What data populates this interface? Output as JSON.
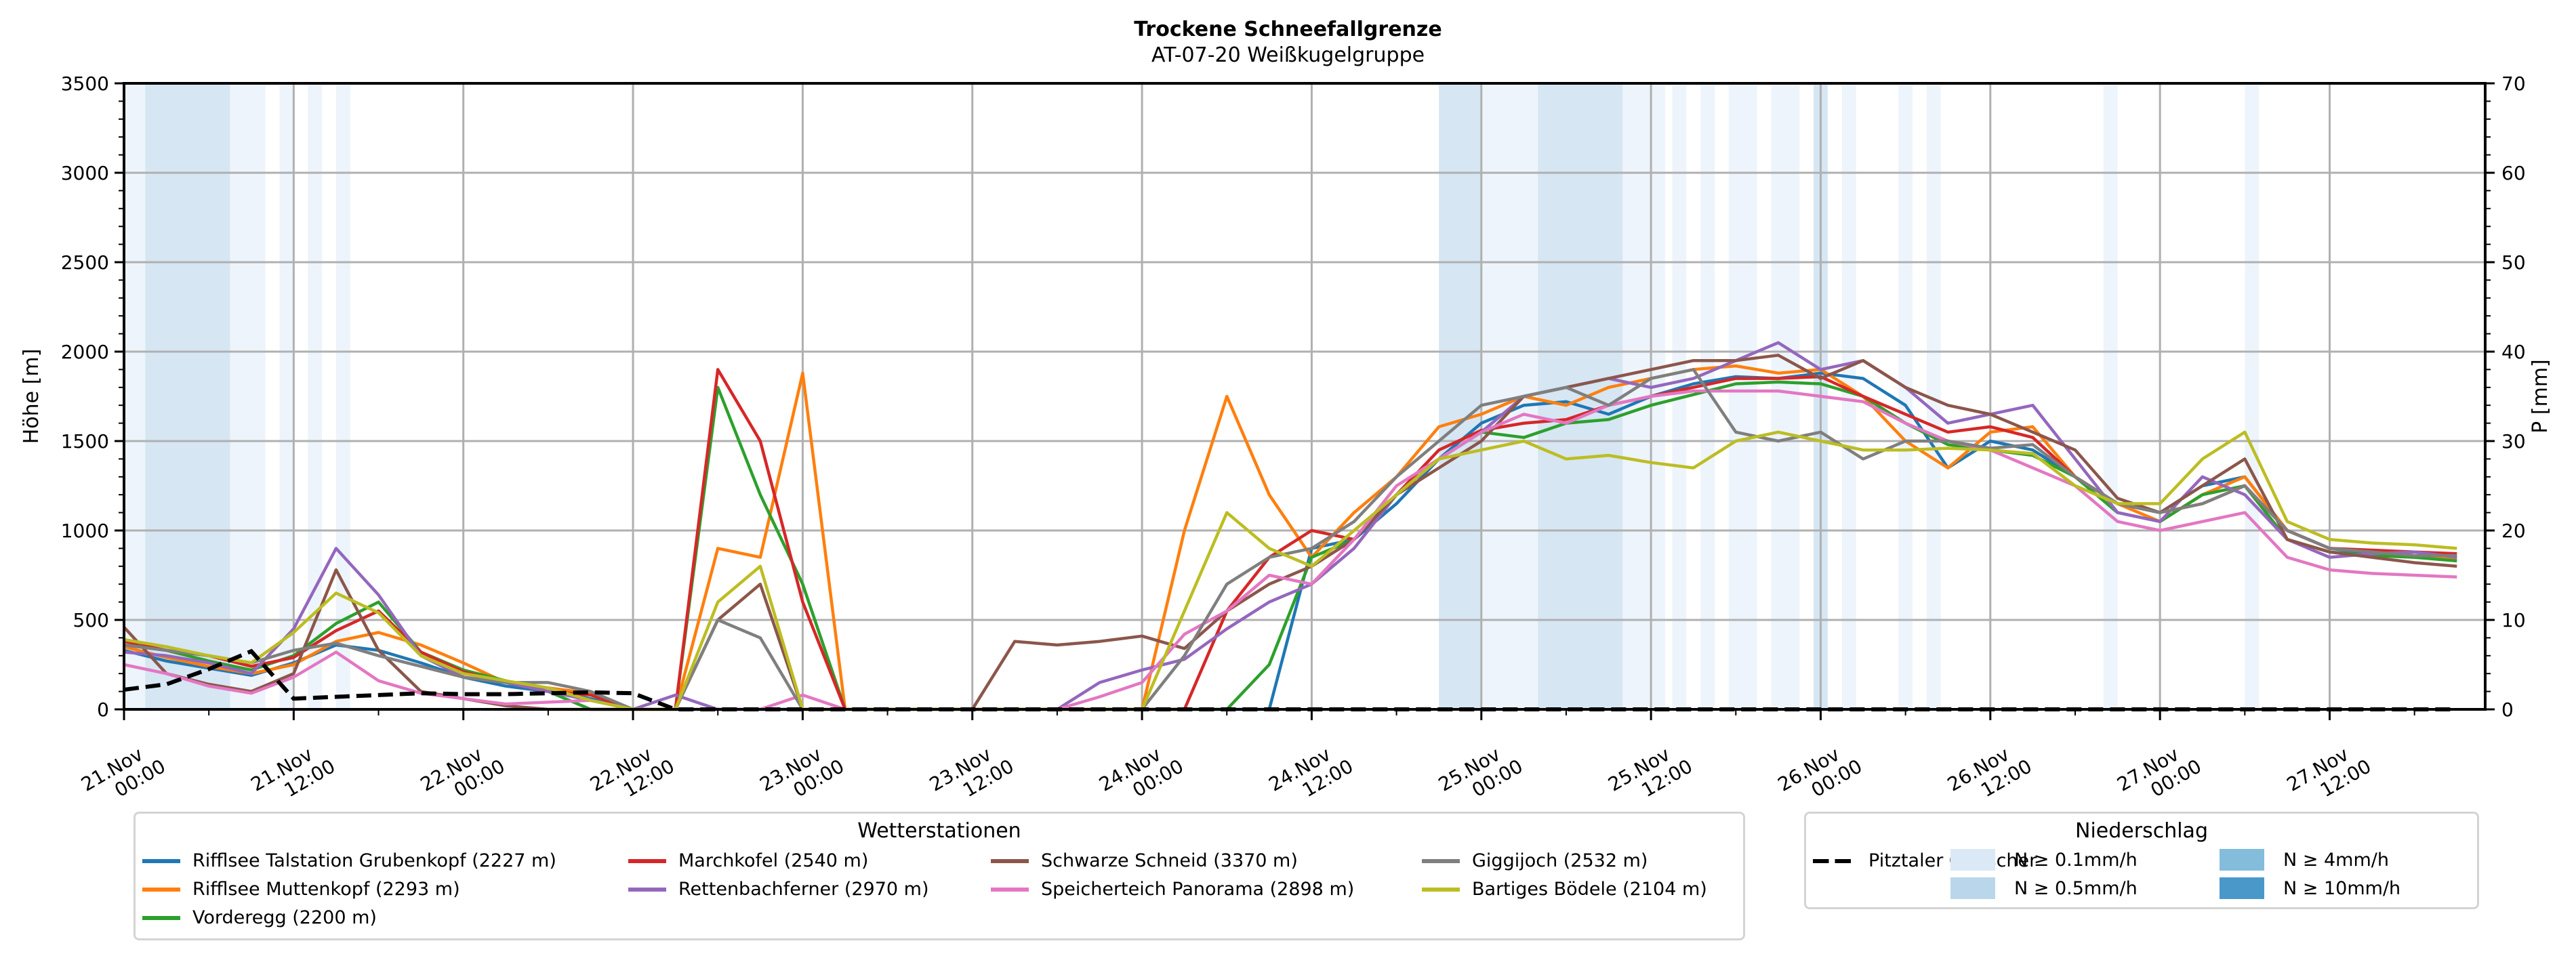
{
  "chart_data": {
    "type": "line",
    "title": "Trockene Schneefallgrenze",
    "subtitle": "AT-07-20 Weißkugelgruppe",
    "ylabel": "Höhe [m]",
    "ylabel_right": "P [mm]",
    "ylim": [
      0,
      3500
    ],
    "ylim_right": [
      0,
      70
    ],
    "grid": true,
    "x_unit": "hours since 21.Nov 00:00",
    "x_step_hours": 3,
    "xlim_hours": [
      0,
      167
    ],
    "x_ticks": [
      {
        "hours": 0,
        "label1": "21.Nov",
        "label2": "00:00"
      },
      {
        "hours": 12,
        "label1": "21.Nov",
        "label2": "12:00"
      },
      {
        "hours": 24,
        "label1": "22.Nov",
        "label2": "00:00"
      },
      {
        "hours": 36,
        "label1": "22.Nov",
        "label2": "12:00"
      },
      {
        "hours": 48,
        "label1": "23.Nov",
        "label2": "00:00"
      },
      {
        "hours": 60,
        "label1": "23.Nov",
        "label2": "12:00"
      },
      {
        "hours": 72,
        "label1": "24.Nov",
        "label2": "00:00"
      },
      {
        "hours": 84,
        "label1": "24.Nov",
        "label2": "12:00"
      },
      {
        "hours": 96,
        "label1": "25.Nov",
        "label2": "00:00"
      },
      {
        "hours": 108,
        "label1": "25.Nov",
        "label2": "12:00"
      },
      {
        "hours": 120,
        "label1": "26.Nov",
        "label2": "00:00"
      },
      {
        "hours": 132,
        "label1": "26.Nov",
        "label2": "12:00"
      },
      {
        "hours": 144,
        "label1": "27.Nov",
        "label2": "00:00"
      },
      {
        "hours": 156,
        "label1": "27.Nov",
        "label2": "12:00"
      }
    ],
    "y_ticks": [
      "0",
      "500",
      "1000",
      "1500",
      "2000",
      "2500",
      "3000",
      "3500"
    ],
    "y_ticks_right": [
      "0",
      "10",
      "20",
      "30",
      "40",
      "50",
      "60",
      "70"
    ],
    "series": [
      {
        "name": "Rifflsee Talstation Grubenkopf (2227 m)",
        "color": "#1f77b4",
        "values": [
          330,
          270,
          230,
          190,
          260,
          360,
          330,
          260,
          180,
          130,
          100,
          60,
          0,
          0,
          0,
          0,
          0,
          0,
          0,
          0,
          0,
          0,
          0,
          0,
          0,
          0,
          0,
          0,
          900,
          950,
          1150,
          1400,
          1600,
          1700,
          1720,
          1650,
          1750,
          1820,
          1860,
          1850,
          1880,
          1850,
          1700,
          1350,
          1500,
          1450,
          1300,
          1150,
          1100,
          1250,
          1300,
          1000,
          900,
          870,
          880,
          850
        ]
      },
      {
        "name": "Rifflsee Muttenkopf (2293 m)",
        "color": "#ff7f0e",
        "values": [
          350,
          290,
          240,
          200,
          250,
          380,
          430,
          360,
          260,
          150,
          120,
          90,
          0,
          0,
          900,
          850,
          1880,
          0,
          0,
          0,
          0,
          0,
          0,
          0,
          0,
          1000,
          1750,
          1200,
          850,
          1100,
          1300,
          1580,
          1650,
          1750,
          1700,
          1800,
          1850,
          1900,
          1920,
          1880,
          1900,
          1750,
          1500,
          1350,
          1550,
          1580,
          1300,
          1150,
          1050,
          1200,
          1300,
          1000,
          900,
          880,
          860,
          840
        ]
      },
      {
        "name": "Vorderegg (2200 m)",
        "color": "#2ca02c",
        "values": [
          360,
          330,
          270,
          220,
          300,
          480,
          600,
          320,
          220,
          160,
          100,
          0,
          0,
          0,
          1800,
          1200,
          700,
          0,
          0,
          0,
          0,
          0,
          0,
          0,
          0,
          0,
          0,
          250,
          850,
          950,
          1200,
          1400,
          1550,
          1520,
          1600,
          1620,
          1700,
          1760,
          1820,
          1830,
          1820,
          1750,
          1600,
          1480,
          1450,
          1420,
          1300,
          1100,
          1050,
          1200,
          1250,
          950,
          880,
          860,
          850,
          830
        ]
      },
      {
        "name": "Marchkofel (2540 m)",
        "color": "#d62728",
        "values": [
          380,
          330,
          300,
          240,
          290,
          440,
          550,
          320,
          210,
          150,
          100,
          80,
          0,
          0,
          1900,
          1500,
          600,
          0,
          0,
          0,
          0,
          0,
          0,
          0,
          0,
          0,
          550,
          850,
          1000,
          950,
          1200,
          1450,
          1560,
          1600,
          1620,
          1700,
          1750,
          1800,
          1850,
          1850,
          1860,
          1750,
          1650,
          1550,
          1580,
          1520,
          1300,
          1150,
          1100,
          1150,
          1250,
          1000,
          900,
          890,
          880,
          870
        ]
      },
      {
        "name": "Rettenbachferner (2970 m)",
        "color": "#9467bd",
        "values": [
          320,
          300,
          260,
          200,
          450,
          900,
          640,
          300,
          180,
          150,
          100,
          50,
          0,
          80,
          0,
          0,
          0,
          0,
          0,
          0,
          0,
          0,
          0,
          150,
          220,
          280,
          450,
          600,
          700,
          900,
          1200,
          1400,
          1550,
          1750,
          1800,
          1850,
          1800,
          1850,
          1950,
          2050,
          1900,
          1950,
          1800,
          1600,
          1650,
          1700,
          1400,
          1100,
          1050,
          1300,
          1200,
          950,
          850,
          870,
          880,
          850
        ]
      },
      {
        "name": "Schwarze Schneid (3370 m)",
        "color": "#8c564b",
        "values": [
          460,
          200,
          140,
          100,
          200,
          780,
          330,
          100,
          60,
          20,
          0,
          0,
          0,
          0,
          500,
          700,
          0,
          0,
          0,
          0,
          0,
          380,
          360,
          380,
          410,
          340,
          550,
          700,
          800,
          950,
          1200,
          1350,
          1500,
          1750,
          1800,
          1850,
          1900,
          1950,
          1950,
          1980,
          1850,
          1950,
          1800,
          1700,
          1650,
          1550,
          1450,
          1180,
          1100,
          1250,
          1400,
          950,
          880,
          850,
          820,
          800
        ]
      },
      {
        "name": "Speicherteich Panorama (2898 m)",
        "color": "#e377c2",
        "values": [
          250,
          200,
          130,
          90,
          180,
          320,
          160,
          90,
          60,
          30,
          40,
          50,
          0,
          0,
          0,
          0,
          80,
          0,
          0,
          0,
          0,
          0,
          0,
          70,
          150,
          420,
          550,
          750,
          700,
          950,
          1250,
          1400,
          1550,
          1650,
          1600,
          1700,
          1750,
          1780,
          1780,
          1780,
          1750,
          1720,
          1600,
          1500,
          1450,
          1350,
          1250,
          1050,
          1000,
          1050,
          1100,
          850,
          780,
          760,
          750,
          740
        ]
      },
      {
        "name": "Giggijoch (2532 m)",
        "color": "#7f7f7f",
        "values": [
          360,
          330,
          300,
          260,
          330,
          370,
          300,
          240,
          180,
          150,
          150,
          100,
          0,
          0,
          500,
          400,
          0,
          0,
          0,
          0,
          0,
          0,
          0,
          0,
          0,
          300,
          700,
          850,
          900,
          1050,
          1300,
          1500,
          1700,
          1750,
          1800,
          1700,
          1850,
          1900,
          1550,
          1500,
          1550,
          1400,
          1500,
          1500,
          1460,
          1480,
          1300,
          1150,
          1100,
          1150,
          1250,
          1000,
          900,
          880,
          860,
          860
        ]
      },
      {
        "name": "Bartiges Bödele (2104 m)",
        "color": "#bcbd22",
        "values": [
          390,
          350,
          300,
          260,
          430,
          650,
          540,
          300,
          200,
          160,
          120,
          50,
          0,
          0,
          600,
          800,
          0,
          0,
          0,
          0,
          0,
          0,
          0,
          0,
          0,
          550,
          1100,
          900,
          800,
          1000,
          1200,
          1400,
          1450,
          1500,
          1400,
          1420,
          1380,
          1350,
          1500,
          1550,
          1500,
          1450,
          1450,
          1460,
          1450,
          1430,
          1250,
          1150,
          1150,
          1400,
          1550,
          1050,
          950,
          930,
          920,
          900
        ]
      }
    ],
    "series_right": {
      "name": "Pitztaler Gletscher",
      "color": "#000000",
      "style": "dashed",
      "values": [
        2.2,
        2.8,
        4.5,
        6.5,
        1.2,
        1.4,
        1.6,
        1.8,
        1.7,
        1.7,
        1.8,
        1.9,
        1.8,
        0,
        0,
        0,
        0,
        0,
        0,
        0,
        0,
        0,
        0,
        0,
        0,
        0,
        0,
        0,
        0,
        0,
        0,
        0,
        0,
        0,
        0,
        0,
        0,
        0,
        0,
        0,
        0,
        0,
        0,
        0,
        0,
        0,
        0,
        0,
        0,
        0,
        0,
        0,
        0,
        0,
        0,
        0
      ]
    },
    "precip_bands": [
      {
        "start_hours": 0,
        "end_hours": 1.5,
        "level": 1
      },
      {
        "start_hours": 1.5,
        "end_hours": 7.5,
        "level": 2
      },
      {
        "start_hours": 7.5,
        "end_hours": 10,
        "level": 1
      },
      {
        "start_hours": 11,
        "end_hours": 12,
        "level": 1
      },
      {
        "start_hours": 13,
        "end_hours": 14,
        "level": 1
      },
      {
        "start_hours": 15,
        "end_hours": 16,
        "level": 1
      },
      {
        "start_hours": 93,
        "end_hours": 96,
        "level": 2
      },
      {
        "start_hours": 96,
        "end_hours": 100,
        "level": 1
      },
      {
        "start_hours": 100,
        "end_hours": 106,
        "level": 2
      },
      {
        "start_hours": 106,
        "end_hours": 109,
        "level": 1
      },
      {
        "start_hours": 109.5,
        "end_hours": 110.5,
        "level": 1
      },
      {
        "start_hours": 111.5,
        "end_hours": 112.5,
        "level": 1
      },
      {
        "start_hours": 113.5,
        "end_hours": 115.5,
        "level": 1
      },
      {
        "start_hours": 116.5,
        "end_hours": 118.5,
        "level": 1
      },
      {
        "start_hours": 119.5,
        "end_hours": 120.5,
        "level": 2
      },
      {
        "start_hours": 121.5,
        "end_hours": 122.5,
        "level": 1
      },
      {
        "start_hours": 125.5,
        "end_hours": 126.5,
        "level": 1
      },
      {
        "start_hours": 127.5,
        "end_hours": 128.5,
        "level": 1
      },
      {
        "start_hours": 140,
        "end_hours": 141,
        "level": 1
      },
      {
        "start_hours": 150,
        "end_hours": 151,
        "level": 1
      }
    ],
    "legend_stations": {
      "title": "Wetterstationen",
      "placement": "bottom-left"
    },
    "legend_precip": {
      "title": "Niederschlag",
      "placement": "bottom-right",
      "items": [
        {
          "label": "N ≥ 0.1mm/h",
          "color": "#dbe9f6"
        },
        {
          "label": "N ≥ 0.5mm/h",
          "color": "#bad6eb"
        },
        {
          "label": "N ≥ 4mm/h",
          "color": "#84bcdb"
        },
        {
          "label": "N ≥ 10mm/h",
          "color": "#4a98c9"
        }
      ]
    },
    "colors": {
      "band_level1": "#edf4fb",
      "band_level2": "#d6e6f3",
      "grid": "#b0b0b0"
    }
  }
}
